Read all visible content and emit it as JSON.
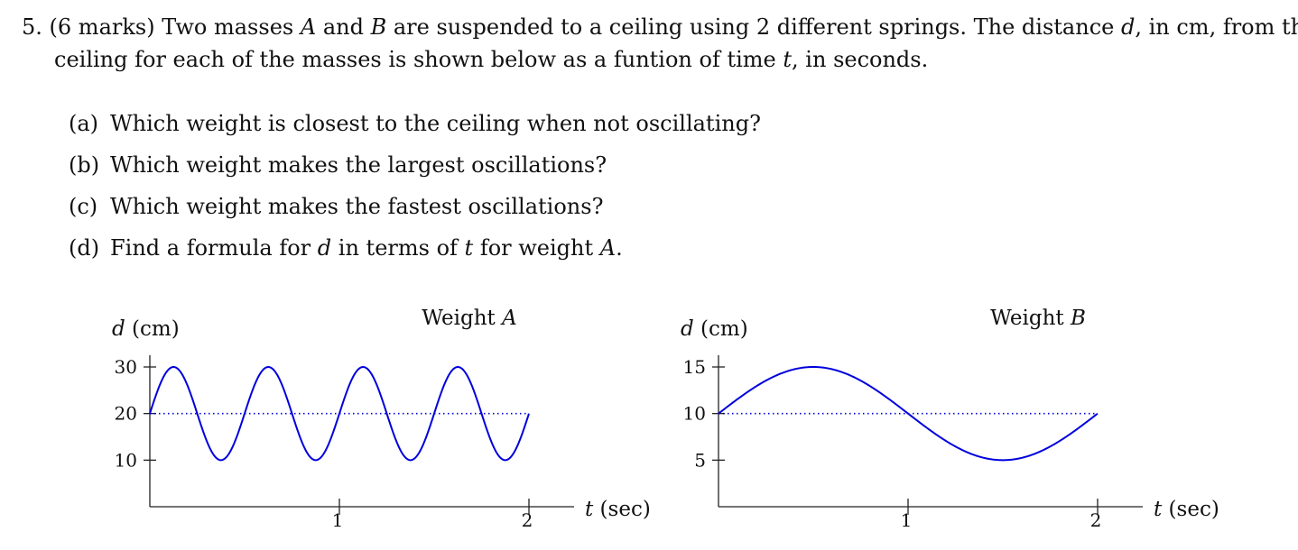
{
  "problem": {
    "number": "5.",
    "marks": "(6 marks)",
    "line1_a": "Two masses ",
    "mass_a": "A",
    "line1_b": " and ",
    "mass_b": "B",
    "line1_c": " are suspended to a ceiling using 2 different springs. The distance ",
    "var_d": "d",
    "line1_d": ", in cm, from the",
    "line2_a": "ceiling for each of the masses is shown below as a funtion of time ",
    "var_t": "t",
    "line2_b": ", in seconds."
  },
  "parts": [
    {
      "label": "(a)",
      "text": "Which weight is closest to the ceiling when not oscillating?"
    },
    {
      "label": "(b)",
      "text": "Which weight makes the largest oscillations?"
    },
    {
      "label": "(c)",
      "text": "Which weight makes the fastest oscillations?"
    },
    {
      "label": "(d)",
      "text": "Find a formula for ",
      "var_d": "d",
      "mid": " in terms of ",
      "var_t": "t",
      "mid2": " for weight ",
      "mass": "A",
      "end": "."
    }
  ],
  "chart_data": [
    {
      "type": "line",
      "title_prefix": "Weight ",
      "title_var": "A",
      "ylabel_var": "d",
      "ylabel_unit": " (cm)",
      "xlabel_var": "t",
      "xlabel_unit": " (sec)",
      "x_ticks": [
        1,
        2
      ],
      "y_ticks": [
        10,
        20,
        30
      ],
      "xlim": [
        0,
        2
      ],
      "ylim": [
        0,
        30
      ],
      "midline": 20,
      "amplitude": 10,
      "period": 0.5,
      "series": [
        {
          "function": "20 + 10*sin(2*pi*t/0.5)",
          "x_range": [
            0,
            2
          ],
          "color": "#0000dd"
        }
      ],
      "midline_style": "dotted"
    },
    {
      "type": "line",
      "title_prefix": "Weight ",
      "title_var": "B",
      "ylabel_var": "d",
      "ylabel_unit": " (cm)",
      "xlabel_var": "t",
      "xlabel_unit": " (sec)",
      "x_ticks": [
        1,
        2
      ],
      "y_ticks": [
        5,
        10,
        15
      ],
      "xlim": [
        0,
        2
      ],
      "ylim": [
        0,
        15
      ],
      "midline": 10,
      "amplitude": 5,
      "period": 2,
      "series": [
        {
          "function": "10 + 5*sin(2*pi*t/2)",
          "x_range": [
            0,
            2
          ],
          "color": "#0000dd"
        }
      ],
      "midline_style": "dotted"
    }
  ]
}
